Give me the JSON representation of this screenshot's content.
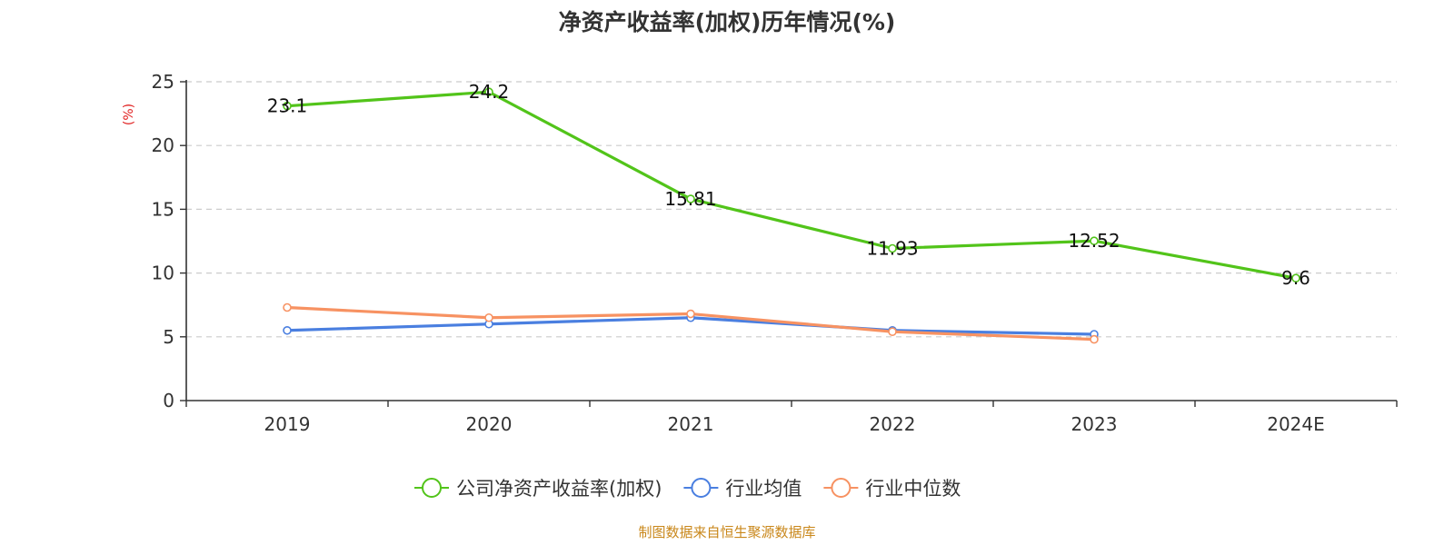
{
  "chart_data": {
    "type": "line",
    "title": "净资产收益率(加权)历年情况(%)",
    "ylabel": "(%)",
    "xlabel": "",
    "categories": [
      "2019",
      "2020",
      "2021",
      "2022",
      "2023",
      "2024E"
    ],
    "yticks": [
      "0",
      "5",
      "10",
      "15",
      "20",
      "25"
    ],
    "ylim": [
      0,
      25
    ],
    "grid": "horizontal dashed",
    "legend_position": "bottom-center",
    "series": [
      {
        "name": "公司净资产收益率(加权)",
        "color": "#52c41a",
        "values": [
          23.1,
          24.2,
          15.81,
          11.93,
          12.52,
          9.6
        ],
        "labels": [
          "23.1",
          "24.2",
          "15.81",
          "11.93",
          "12.52",
          "9.6"
        ]
      },
      {
        "name": "行业均值",
        "color": "#4a7fe0",
        "values": [
          5.5,
          6.0,
          6.5,
          5.5,
          5.2,
          null
        ]
      },
      {
        "name": "行业中位数",
        "color": "#f79262",
        "values": [
          7.3,
          6.5,
          6.8,
          5.4,
          4.8,
          null
        ]
      }
    ],
    "source": "制图数据来自恒生聚源数据库",
    "source_color": "#c9871a",
    "ylabel_color": "#e02020"
  }
}
